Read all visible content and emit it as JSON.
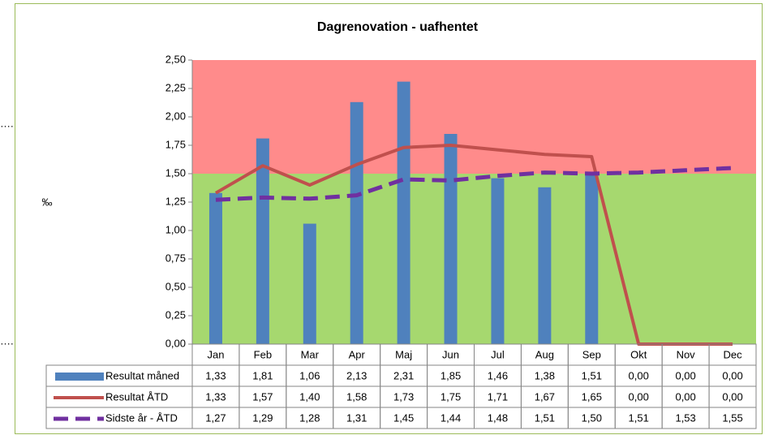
{
  "chart_data": {
    "type": "combo",
    "title": "Dagrenovation - uafhentet",
    "y_label": "‰",
    "annotations": [
      "….",
      "…."
    ],
    "categories": [
      "Jan",
      "Feb",
      "Mar",
      "Apr",
      "Maj",
      "Jun",
      "Jul",
      "Aug",
      "Sep",
      "Okt",
      "Nov",
      "Dec"
    ],
    "series": [
      {
        "name": "Resultat måned",
        "type": "bar",
        "color": "#4f81bd",
        "values": [
          1.33,
          1.81,
          1.06,
          2.13,
          2.31,
          1.85,
          1.46,
          1.38,
          1.51,
          0,
          0,
          0
        ],
        "value_labels": [
          "1,33",
          "1,81",
          "1,06",
          "2,13",
          "2,31",
          "1,85",
          "1,46",
          "1,38",
          "1,51",
          "0,00",
          "0,00",
          "0,00"
        ]
      },
      {
        "name": "Resultat ÅTD",
        "type": "line",
        "color": "#c0504d",
        "dashed": false,
        "values": [
          1.33,
          1.57,
          1.4,
          1.58,
          1.73,
          1.75,
          1.71,
          1.67,
          1.65,
          0,
          0,
          0
        ],
        "value_labels": [
          "1,33",
          "1,57",
          "1,40",
          "1,58",
          "1,73",
          "1,75",
          "1,71",
          "1,67",
          "1,65",
          "0,00",
          "0,00",
          "0,00"
        ]
      },
      {
        "name": "Sidste år - ÅTD",
        "type": "line",
        "color": "#7030a0",
        "dashed": true,
        "values": [
          1.27,
          1.29,
          1.28,
          1.31,
          1.45,
          1.44,
          1.48,
          1.51,
          1.5,
          1.51,
          1.53,
          1.55
        ],
        "value_labels": [
          "1,27",
          "1,29",
          "1,28",
          "1,31",
          "1,45",
          "1,44",
          "1,48",
          "1,51",
          "1,50",
          "1,51",
          "1,53",
          "1,55"
        ]
      }
    ],
    "bands": [
      {
        "from": 1.5,
        "to": 2.5,
        "color": "#ff8b8b"
      },
      {
        "from": 0,
        "to": 1.5,
        "color": "#a6d86f"
      }
    ],
    "ylim": [
      0,
      2.5
    ],
    "yticks": [
      {
        "value": 0,
        "label": "0,00"
      },
      {
        "value": 0.25,
        "label": "0,25"
      },
      {
        "value": 0.5,
        "label": "0,50"
      },
      {
        "value": 0.75,
        "label": "0,75"
      },
      {
        "value": 1,
        "label": "1,00"
      },
      {
        "value": 1.25,
        "label": "1,25"
      },
      {
        "value": 1.5,
        "label": "1,50"
      },
      {
        "value": 1.75,
        "label": "1,75"
      },
      {
        "value": 2,
        "label": "2,00"
      },
      {
        "value": 2.25,
        "label": "2,25"
      },
      {
        "value": 2.5,
        "label": "2,50"
      }
    ]
  }
}
